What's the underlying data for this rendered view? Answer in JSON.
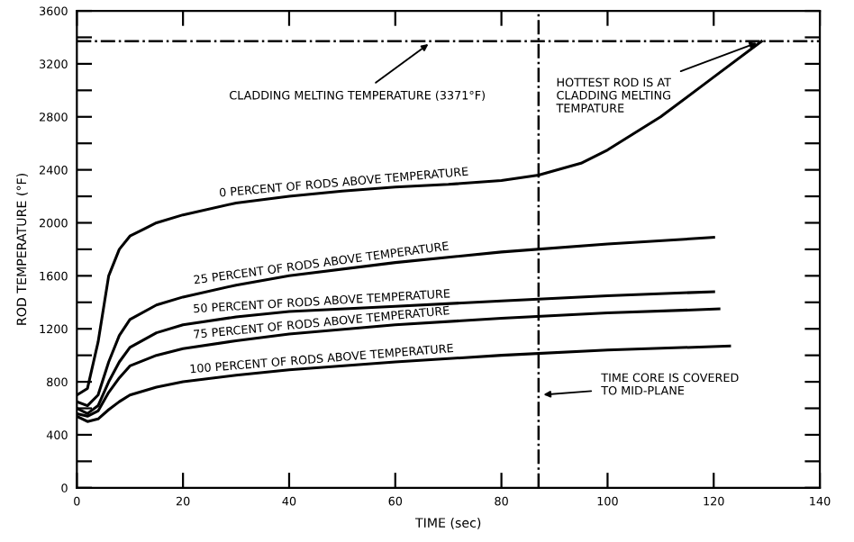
{
  "chart_data": {
    "type": "line",
    "xlabel": "TIME (sec)",
    "ylabel": "ROD TEMPERATURE (°F)",
    "xlim": [
      0,
      140
    ],
    "xticks": [
      0,
      20,
      40,
      60,
      80,
      100,
      120,
      140
    ],
    "ylim": [
      0,
      3600
    ],
    "yticks": [
      0,
      {
        "value": 200,
        "label": null
      },
      400,
      {
        "value": 600,
        "label": null
      },
      800,
      {
        "value": 1000,
        "label": null
      },
      1200,
      {
        "value": 1400,
        "label": null
      },
      1600,
      {
        "value": 1800,
        "label": null
      },
      2000,
      {
        "value": 2200,
        "label": null
      },
      2400,
      {
        "value": 2600,
        "label": null
      },
      2800,
      {
        "value": 3000,
        "label": null
      },
      3200,
      {
        "value": 3400,
        "label": null
      },
      3600
    ],
    "grid": false,
    "legend": false,
    "marker": "none",
    "line_style": "solid",
    "series": [
      {
        "name": "0 PERCENT OF RODS ABOVE TEMPERATURE",
        "color": "#000000",
        "x": [
          0,
          2,
          4,
          6,
          8,
          10,
          15,
          20,
          30,
          40,
          50,
          60,
          70,
          80,
          87,
          95,
          100,
          110,
          120,
          129
        ],
        "values": [
          700,
          750,
          1100,
          1600,
          1800,
          1900,
          2000,
          2060,
          2150,
          2200,
          2240,
          2270,
          2290,
          2320,
          2360,
          2450,
          2550,
          2800,
          3100,
          3370
        ]
      },
      {
        "name": "25 PERCENT OF RODS ABOVE TEMPERATURE",
        "color": "#000000",
        "x": [
          0,
          2,
          4,
          6,
          8,
          10,
          15,
          20,
          30,
          40,
          60,
          80,
          100,
          120
        ],
        "values": [
          650,
          620,
          700,
          950,
          1150,
          1270,
          1380,
          1440,
          1530,
          1600,
          1700,
          1780,
          1840,
          1890
        ]
      },
      {
        "name": "50 PERCENT OF RODS ABOVE TEMPERATURE",
        "color": "#000000",
        "x": [
          0,
          2,
          4,
          6,
          8,
          10,
          15,
          20,
          30,
          40,
          60,
          80,
          100,
          120
        ],
        "values": [
          600,
          560,
          620,
          800,
          950,
          1060,
          1170,
          1230,
          1290,
          1330,
          1370,
          1410,
          1450,
          1480
        ]
      },
      {
        "name": "75 PERCENT OF RODS ABOVE TEMPERATURE",
        "color": "#000000",
        "x": [
          0,
          2,
          4,
          6,
          8,
          10,
          15,
          20,
          30,
          40,
          60,
          80,
          100,
          121
        ],
        "values": [
          560,
          540,
          580,
          720,
          830,
          920,
          1000,
          1050,
          1110,
          1160,
          1230,
          1280,
          1320,
          1350
        ]
      },
      {
        "name": "100 PERCENT OF RODS ABOVE TEMPERATURE",
        "color": "#000000",
        "x": [
          0,
          2,
          4,
          6,
          8,
          10,
          15,
          20,
          30,
          40,
          60,
          80,
          100,
          123
        ],
        "values": [
          540,
          500,
          520,
          590,
          650,
          700,
          760,
          800,
          850,
          890,
          950,
          1000,
          1040,
          1070
        ]
      }
    ],
    "ref_lines": [
      {
        "axis": "y",
        "value": 3371,
        "label": null,
        "color": "#000000",
        "line_style": "dashdot"
      },
      {
        "axis": "x",
        "value": 87,
        "label": null,
        "color": "#000000",
        "line_style": "dashdot"
      }
    ],
    "annotations": [
      {
        "text": "CLADDING MELTING TEMPERATURE (3371°F)",
        "x": 67,
        "y": 3371
      },
      {
        "text": "HOTTEST ROD IS AT\nCLADDING MELTING\nTEMPATURE",
        "x": 129,
        "y": 3371
      },
      {
        "text": "TIME CORE IS COVERED\nTO MID-PLANE",
        "x": 87,
        "y": 700
      }
    ]
  }
}
